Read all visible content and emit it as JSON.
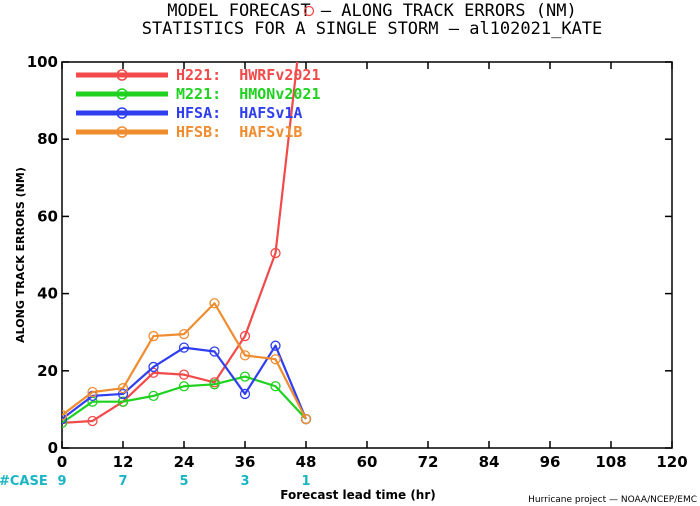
{
  "chart_data": {
    "type": "line",
    "title_line1": "MODEL FORECAST — ALONG TRACK ERRORS (NM)",
    "title_line2": "STATISTICS FOR A SINGLE STORM — al102021_KATE",
    "xlabel": "Forecast lead time (hr)",
    "ylabel": "ALONG TRACK ERRORS (NM)",
    "xlim": [
      0,
      120
    ],
    "ylim": [
      0,
      100
    ],
    "x_ticks": [
      0,
      12,
      24,
      36,
      48,
      60,
      72,
      84,
      96,
      108,
      120
    ],
    "y_ticks": [
      0,
      20,
      40,
      60,
      80,
      100
    ],
    "legend_position": "top-left",
    "grid": false,
    "case_label": "#CASE",
    "cases": [
      {
        "x": 0,
        "count": "9"
      },
      {
        "x": 12,
        "count": "7"
      },
      {
        "x": 24,
        "count": "5"
      },
      {
        "x": 36,
        "count": "3"
      },
      {
        "x": 48,
        "count": "1"
      }
    ],
    "series": [
      {
        "name": "H221:  HWRFv2021",
        "color": "#f24a4a",
        "x": [
          0,
          6,
          12,
          18,
          24,
          30,
          36,
          42,
          48
        ],
        "y": [
          6.5,
          7,
          12,
          19.5,
          19,
          17,
          29,
          50.5,
          120
        ],
        "hollow_last": true
      },
      {
        "name": "M221:  HMONv2021",
        "color": "#1fd21f",
        "x": [
          0,
          6,
          12,
          18,
          24,
          30,
          36,
          42,
          48
        ],
        "y": [
          6.5,
          12,
          12,
          13.5,
          16,
          16.5,
          18.5,
          16,
          7.5
        ]
      },
      {
        "name": "HFSA:  HAFSv1A",
        "color": "#2f3ff0",
        "x": [
          0,
          6,
          12,
          18,
          24,
          30,
          36,
          42,
          48
        ],
        "y": [
          7.5,
          13.5,
          14,
          21,
          26,
          25,
          14,
          26.5,
          7.5
        ]
      },
      {
        "name": "HFSB:  HAFSv1B",
        "color": "#f08c2e",
        "x": [
          0,
          6,
          12,
          18,
          24,
          30,
          36,
          42,
          48
        ],
        "y": [
          8.5,
          14.5,
          15.5,
          29,
          29.5,
          37.5,
          24,
          23,
          7.5
        ]
      }
    ],
    "credit": "Hurricane project — NOAA/NCEP/EMC"
  }
}
